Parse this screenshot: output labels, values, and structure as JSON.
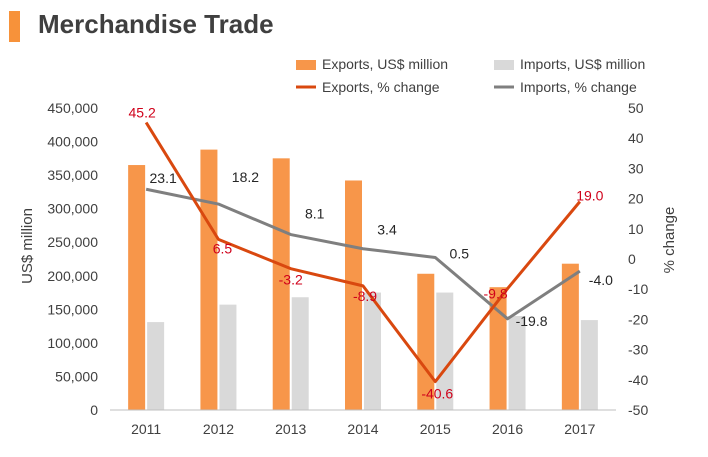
{
  "title": "Merchandise Trade",
  "colors": {
    "accent": "#f7923a",
    "exports_bar": "#f7964a",
    "imports_bar": "#d9d9d9",
    "exports_line": "#d9480f",
    "imports_line": "#7f7f7f",
    "exports_label": "#d0021b",
    "imports_label": "#262626",
    "axis_text": "#404040"
  },
  "chart_data": {
    "type": "bar",
    "title": "Merchandise Trade",
    "categories": [
      "2011",
      "2012",
      "2013",
      "2014",
      "2015",
      "2016",
      "2017"
    ],
    "series": [
      {
        "name": "Exports, US$ million",
        "kind": "bar",
        "axis": "left",
        "values": [
          365000,
          388000,
          375000,
          342000,
          203000,
          183000,
          218000
        ]
      },
      {
        "name": "Imports, US$ million",
        "kind": "bar",
        "axis": "left",
        "values": [
          131000,
          157000,
          168000,
          175000,
          175000,
          140000,
          134000
        ]
      },
      {
        "name": "Exports, % change",
        "kind": "line",
        "axis": "right",
        "values": [
          45.2,
          6.5,
          -3.2,
          -8.9,
          -40.6,
          -9.8,
          19.0
        ],
        "labels": [
          "45.2",
          "6.5",
          "-3.2",
          "-8.9",
          "-40.6",
          "-9.8",
          "19.0"
        ]
      },
      {
        "name": "Imports, % change",
        "kind": "line",
        "axis": "right",
        "values": [
          23.1,
          18.2,
          8.1,
          3.4,
          0.5,
          -19.8,
          -4.0
        ],
        "labels": [
          "23.1",
          "18.2",
          "8.1",
          "3.4",
          "0.5",
          "-19.8",
          "-4.0"
        ]
      }
    ],
    "ylabel_left": "US$ million",
    "ylabel_right": "% change",
    "ylim_left": [
      0,
      450000
    ],
    "ylim_right": [
      -50,
      50
    ],
    "yticks_left": [
      "0",
      "50,000",
      "100,000",
      "150,000",
      "200,000",
      "250,000",
      "300,000",
      "350,000",
      "400,000",
      "450,000"
    ],
    "yticks_right": [
      "-50",
      "-40",
      "-30",
      "-20",
      "-10",
      "0",
      "10",
      "20",
      "30",
      "40",
      "50"
    ],
    "grid": false,
    "legend_position": "top-right"
  }
}
